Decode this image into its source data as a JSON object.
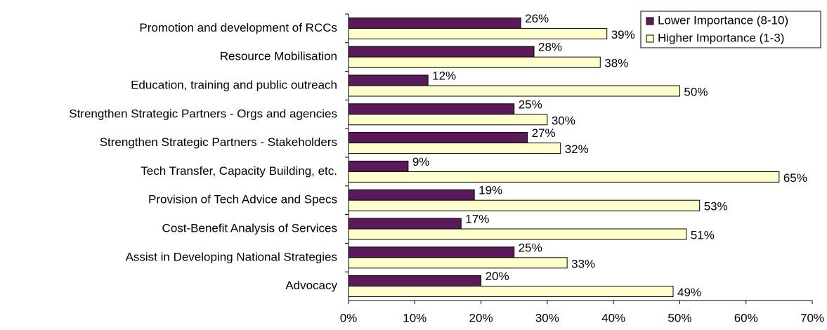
{
  "chart_data": {
    "type": "bar",
    "orientation": "horizontal",
    "categories": [
      "Promotion and development of RCCs",
      "Resource Mobilisation",
      "Education, training and public outreach",
      "Strengthen Strategic Partners - Orgs and agencies",
      "Strengthen Strategic Partners - Stakeholders",
      "Tech Transfer, Capacity Building, etc.",
      "Provision of Tech Advice and Specs",
      "Cost-Benefit Analysis of Services",
      "Assist in Developing National Strategies",
      "Advocacy"
    ],
    "series": [
      {
        "name": "Lower Importance (8-10)",
        "color": "#5a1a5a",
        "values": [
          26,
          28,
          12,
          25,
          27,
          9,
          19,
          17,
          25,
          20
        ],
        "value_labels": [
          "26%",
          "28%",
          "12%",
          "25%",
          "27%",
          "9%",
          "19%",
          "17%",
          "25%",
          "20%"
        ]
      },
      {
        "name": "Higher Importance (1-3)",
        "color": "#ffffcc",
        "values": [
          39,
          38,
          50,
          30,
          32,
          65,
          53,
          51,
          33,
          49
        ],
        "value_labels": [
          "39%",
          "38%",
          "50%",
          "30%",
          "32%",
          "65%",
          "53%",
          "51%",
          "33%",
          "49%"
        ]
      }
    ],
    "xlim": [
      0,
      70
    ],
    "xticks": [
      {
        "value": 0,
        "label": "0%"
      },
      {
        "value": 10,
        "label": "10%"
      },
      {
        "value": 20,
        "label": "20%"
      },
      {
        "value": 30,
        "label": "30%"
      },
      {
        "value": 40,
        "label": "40%"
      },
      {
        "value": 50,
        "label": "50%"
      },
      {
        "value": 60,
        "label": "60%"
      },
      {
        "value": 70,
        "label": "70%"
      }
    ],
    "grid": false,
    "legend": "top-right"
  }
}
